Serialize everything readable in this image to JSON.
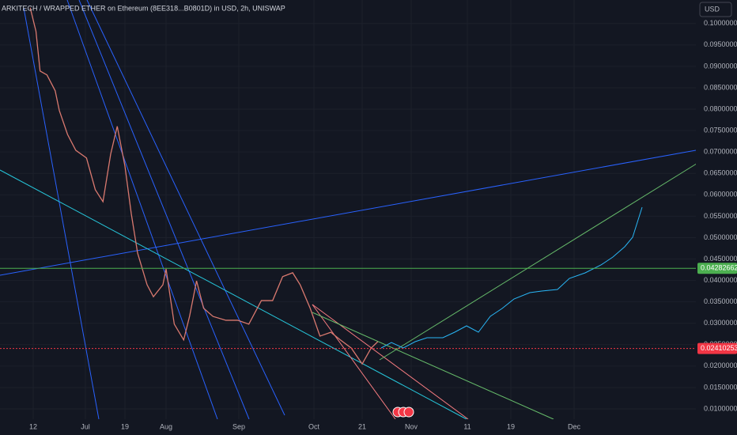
{
  "chart_data": {
    "type": "line",
    "title": "ARKITECH / WRAPPED ETHER on Ethereum (8EE318...B0801D) in USD, 2h, UNISWAP",
    "currency": "USD",
    "x": [
      10,
      12,
      13.5,
      16,
      19,
      20.5,
      23.5,
      26.5,
      30.5,
      34.5,
      38,
      41.5,
      44.5,
      48,
      50,
      52,
      55,
      57,
      60,
      61,
      64.5,
      68.5,
      71,
      74,
      77,
      81,
      86.5,
      91.5,
      96,
      101,
      105.5,
      109.5,
      113.5,
      116.5,
      120.5,
      124.5,
      129,
      133,
      137.5,
      142,
      144,
      145.5
    ],
    "series": [
      {
        "color": "#d9796f",
        "values": [
          0.1037,
          0.0982,
          0.0889,
          0.088,
          0.0843,
          0.0797,
          0.0741,
          0.0704,
          0.0686,
          0.0612,
          0.0584,
          0.0695,
          0.076,
          0.0667,
          0.0556,
          0.0464,
          0.039,
          0.0362,
          0.039,
          0.0427,
          0.0298,
          0.0261,
          0.0316,
          0.0399,
          0.0335,
          0.0316,
          0.0307,
          0.0307,
          0.0298,
          0.0353,
          0.0353,
          0.0409,
          0.0418,
          0.039,
          0.0335,
          0.027,
          0.0279,
          0.0261,
          0.0242,
          0.0205,
          0.0242,
          0.0257
        ]
      }
    ],
    "xlim": [
      0,
      205
    ],
    "xticks": [
      {
        "value": 11,
        "label": "12"
      },
      {
        "value": 30,
        "label": "Jul"
      },
      {
        "value": 48,
        "label": "19"
      },
      {
        "value": 61,
        "label": "Aug"
      },
      {
        "value": 92,
        "label": "Sep"
      },
      {
        "value": 122,
        "label": "Oct"
      },
      {
        "value": 142,
        "label": "21"
      },
      {
        "value": 153,
        "label": "Nov"
      },
      {
        "value": 163,
        "label": "11"
      },
      {
        "value": 171,
        "label": "19"
      },
      {
        "value": 183,
        "label": "Dec"
      }
    ],
    "ylim": [
      0.0076,
      0.1055
    ],
    "yticks": [
      {
        "value": 0.01,
        "label": "0.01000000"
      },
      {
        "value": 0.015,
        "label": "0.01500000"
      },
      {
        "value": 0.02,
        "label": "0.02000000"
      },
      {
        "value": 0.025,
        "label": "0.02500000"
      },
      {
        "value": 0.03,
        "label": "0.03000000"
      },
      {
        "value": 0.035,
        "label": "0.03500000"
      },
      {
        "value": 0.04,
        "label": "0.04000000"
      },
      {
        "value": 0.045,
        "label": "0.04500000"
      },
      {
        "value": 0.05,
        "label": "0.05000000"
      },
      {
        "value": 0.055,
        "label": "0.05500000"
      },
      {
        "value": 0.06,
        "label": "0.06000000"
      },
      {
        "value": 0.065,
        "label": "0.06500000"
      },
      {
        "value": 0.07,
        "label": "0.07000000"
      },
      {
        "value": 0.075,
        "label": "0.07500000"
      },
      {
        "value": 0.08,
        "label": "0.08000000"
      },
      {
        "value": 0.085,
        "label": "0.08500000"
      },
      {
        "value": 0.09,
        "label": "0.09000000"
      },
      {
        "value": 0.095,
        "label": "0.09500000"
      },
      {
        "value": 0.1,
        "label": "0.10000000"
      }
    ],
    "price_lines": [
      {
        "value": 0.04282662,
        "color": "#4caf50",
        "dashed": false
      },
      {
        "value": 0.02410253,
        "color": "#f23645",
        "dashed": true
      }
    ],
    "grid": true
  }
}
